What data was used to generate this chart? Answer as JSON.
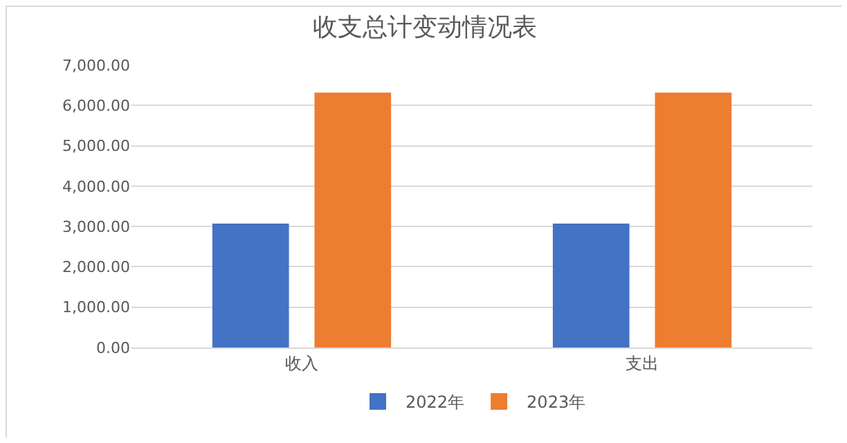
{
  "chart_data": {
    "type": "bar",
    "title": "收支总计变动情况表",
    "categories": [
      "收入",
      "支出"
    ],
    "series": [
      {
        "name": "2022年",
        "color": "#4472c4",
        "values": [
          3070,
          3070
        ]
      },
      {
        "name": "2023年",
        "color": "#ed7d31",
        "values": [
          6320,
          6320
        ]
      }
    ],
    "ylim": [
      0,
      7000
    ],
    "yticks": [
      {
        "value": 0,
        "label": "0.00"
      },
      {
        "value": 1000,
        "label": "1,000.00"
      },
      {
        "value": 2000,
        "label": "2,000.00"
      },
      {
        "value": 3000,
        "label": "3,000.00"
      },
      {
        "value": 4000,
        "label": "4,000.00"
      },
      {
        "value": 5000,
        "label": "5,000.00"
      },
      {
        "value": 6000,
        "label": "6,000.00"
      },
      {
        "value": 7000,
        "label": "7,000.00"
      }
    ],
    "grid": "y",
    "legend": "bottom"
  }
}
